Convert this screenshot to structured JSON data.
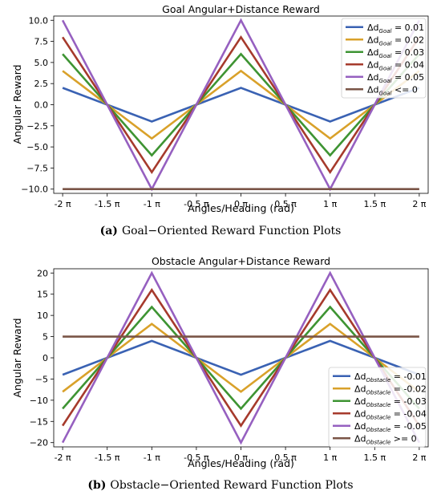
{
  "captions": [
    {
      "letter": "(a)",
      "text": "Goal−Oriented Reward Function Plots"
    },
    {
      "letter": "(b)",
      "text": "Obstacle−Oriented Reward Function Plots"
    }
  ],
  "chart_data": [
    {
      "type": "line",
      "title": "Goal Angular+Distance Reward",
      "xlabel": "Angles/Heading (rad)",
      "ylabel": "Angular Reward",
      "x": [
        -2,
        -1.5,
        -1,
        -0.5,
        0,
        0.5,
        1,
        1.5,
        2
      ],
      "x_tick_labels": [
        "-2 π",
        "-1.5 π",
        "-1 π",
        "-0.5 π",
        "0 π",
        "0.5 π",
        "1 π",
        "1.5 π",
        "2 π"
      ],
      "xlim": [
        -2.1,
        2.1
      ],
      "ylim": [
        -10.5,
        10.5
      ],
      "y_ticks": [
        -10.0,
        -7.5,
        -5.0,
        -2.5,
        0.0,
        2.5,
        5.0,
        7.5,
        10.0
      ],
      "y_tick_labels": [
        "−10.0",
        "−7.5",
        "−5.0",
        "−2.5",
        "0.0",
        "2.5",
        "5.0",
        "7.5",
        "10.0"
      ],
      "grid": false,
      "legend_position": "top-right",
      "series": [
        {
          "name": "Δd_Goal = 0.01",
          "legend_base": "Δd",
          "legend_sub": "Goal",
          "legend_tail": " = 0.01",
          "color": "#3a62b3",
          "values": [
            2,
            0,
            -2,
            0,
            2,
            0,
            -2,
            0,
            2
          ]
        },
        {
          "name": "Δd_Goal = 0.02",
          "legend_base": "Δd",
          "legend_sub": "Goal",
          "legend_tail": " = 0.02",
          "color": "#d9a12a",
          "values": [
            4,
            0,
            -4,
            0,
            4,
            0,
            -4,
            0,
            4
          ]
        },
        {
          "name": "Δd_Goal = 0.03",
          "legend_base": "Δd",
          "legend_sub": "Goal",
          "legend_tail": " = 0.03",
          "color": "#3e9433",
          "values": [
            6,
            0,
            -6,
            0,
            6,
            0,
            -6,
            0,
            6
          ]
        },
        {
          "name": "Δd_Goal = 0.04",
          "legend_base": "Δd",
          "legend_sub": "Goal",
          "legend_tail": " = 0.04",
          "color": "#a63a2c",
          "values": [
            8,
            0,
            -8,
            0,
            8,
            0,
            -8,
            0,
            8
          ]
        },
        {
          "name": "Δd_Goal = 0.05",
          "legend_base": "Δd",
          "legend_sub": "Goal",
          "legend_tail": " = 0.05",
          "color": "#9660c0",
          "values": [
            10,
            0,
            -10,
            0,
            10,
            0,
            -10,
            0,
            10
          ]
        },
        {
          "name": "Δd_Goal <= 0",
          "legend_base": "Δd",
          "legend_sub": "Goal",
          "legend_tail": " <= 0",
          "color": "#7a5547",
          "values": [
            -10,
            -10,
            -10,
            -10,
            -10,
            -10,
            -10,
            -10,
            -10
          ]
        }
      ]
    },
    {
      "type": "line",
      "title": "Obstacle Angular+Distance Reward",
      "xlabel": "Angles/Heading (rad)",
      "ylabel": "Angular Reward",
      "x": [
        -2,
        -1.5,
        -1,
        -0.5,
        0,
        0.5,
        1,
        1.5,
        2
      ],
      "x_tick_labels": [
        "-2 π",
        "-1.5 π",
        "-1 π",
        "-0.5 π",
        "0 π",
        "0.5 π",
        "1 π",
        "1.5 π",
        "2 π"
      ],
      "xlim": [
        -2.1,
        2.1
      ],
      "ylim": [
        -21,
        21
      ],
      "y_ticks": [
        -20,
        -15,
        -10,
        -5,
        0,
        5,
        10,
        15,
        20
      ],
      "y_tick_labels": [
        "−20",
        "−15",
        "−10",
        "−5",
        "0",
        "5",
        "10",
        "15",
        "20"
      ],
      "grid": false,
      "legend_position": "bottom-right",
      "series": [
        {
          "name": "Δd_Obstacle = -0.01",
          "legend_base": "Δd",
          "legend_sub": "Obstacle",
          "legend_tail": " = -0.01",
          "color": "#3a62b3",
          "values": [
            -4,
            0,
            4,
            0,
            -4,
            0,
            4,
            0,
            -4
          ]
        },
        {
          "name": "Δd_Obstacle = -0.02",
          "legend_base": "Δd",
          "legend_sub": "Obstacle",
          "legend_tail": " = -0.02",
          "color": "#d9a12a",
          "values": [
            -8,
            0,
            8,
            0,
            -8,
            0,
            8,
            0,
            -8
          ]
        },
        {
          "name": "Δd_Obstacle = -0.03",
          "legend_base": "Δd",
          "legend_sub": "Obstacle",
          "legend_tail": " = -0.03",
          "color": "#3e9433",
          "values": [
            -12,
            0,
            12,
            0,
            -12,
            0,
            12,
            0,
            -12
          ]
        },
        {
          "name": "Δd_Obstacle = -0.04",
          "legend_base": "Δd",
          "legend_sub": "Obstacle",
          "legend_tail": " = -0.04",
          "color": "#a63a2c",
          "values": [
            -16,
            0,
            16,
            0,
            -16,
            0,
            16,
            0,
            -16
          ]
        },
        {
          "name": "Δd_Obstacle = -0.05",
          "legend_base": "Δd",
          "legend_sub": "Obstacle",
          "legend_tail": " = -0.05",
          "color": "#9660c0",
          "values": [
            -20,
            0,
            20,
            0,
            -20,
            0,
            20,
            0,
            -20
          ]
        },
        {
          "name": "Δd_Obstacle >= 0",
          "legend_base": "Δd",
          "legend_sub": "Obstacle",
          "legend_tail": " >= 0",
          "color": "#7a5547",
          "values": [
            5,
            5,
            5,
            5,
            5,
            5,
            5,
            5,
            5
          ]
        }
      ]
    }
  ]
}
